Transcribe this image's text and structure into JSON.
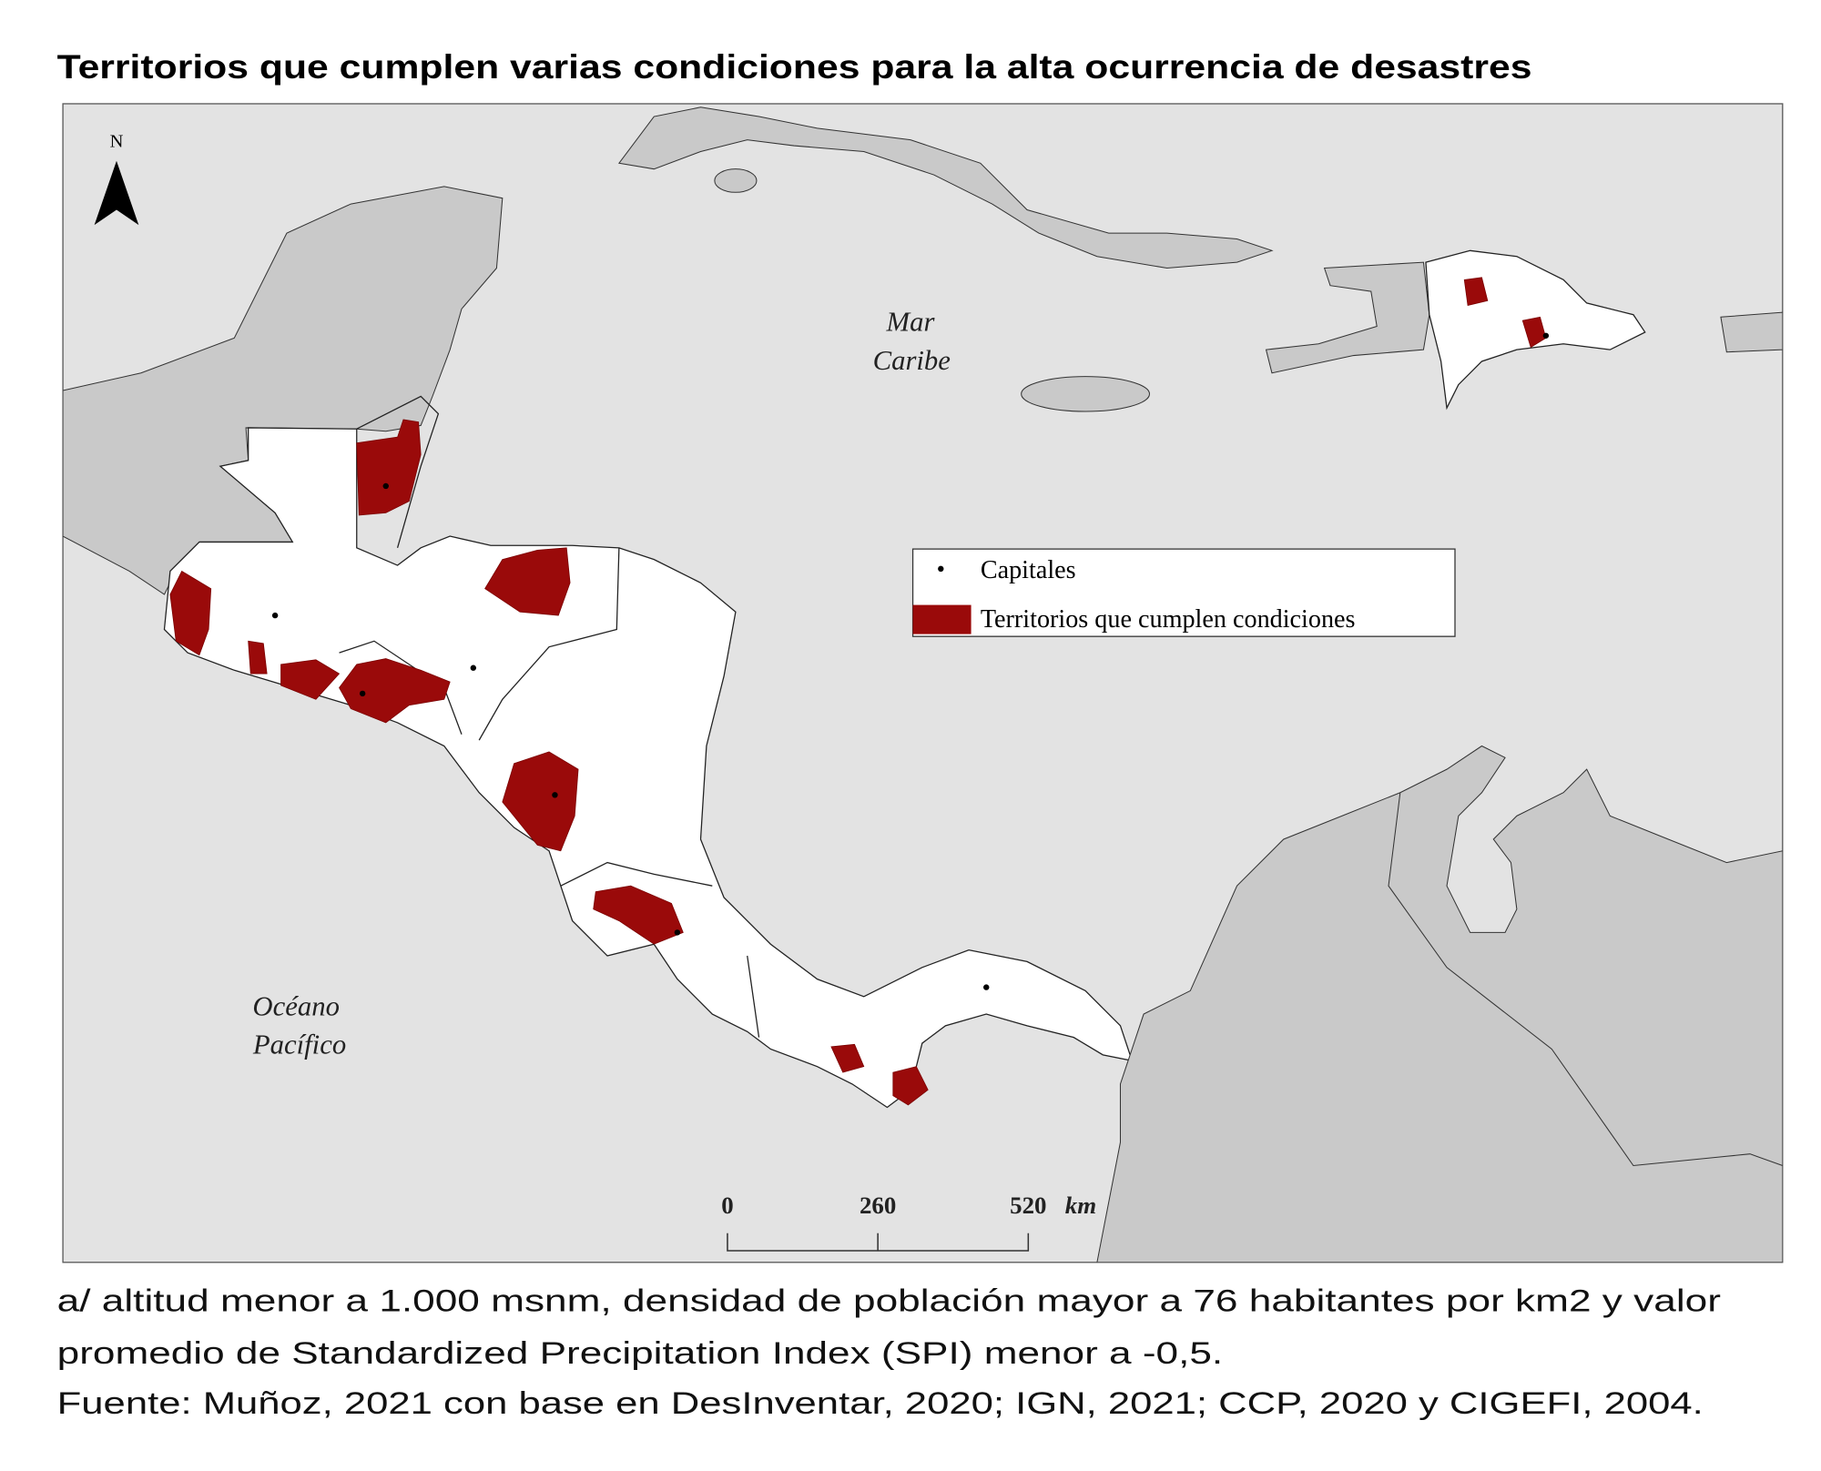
{
  "title": "Territorios que cumplen varias condiciones para la alta ocurrencia de desastres",
  "map": {
    "north": "N",
    "sea_labels": [
      "Mar",
      "Caribe"
    ],
    "ocean_labels": [
      "Océano",
      "Pacífico"
    ],
    "legend": {
      "items": [
        "Capitales",
        "Territorios que cumplen condiciones"
      ]
    },
    "scale": {
      "labels": [
        "0",
        "260",
        "520"
      ],
      "unit": "km"
    }
  },
  "notes": [
    "a/ altitud menor a 1.000 msnm, densidad de población mayor a 76 habitantes por km2 y valor",
    "promedio de Standardized Precipitation Index (SPI) menor a -0,5.",
    "Fuente: Muñoz, 2021 con base en DesInventar, 2020; IGN, 2021; CCP, 2020 y CIGEFI, 2004."
  ]
}
